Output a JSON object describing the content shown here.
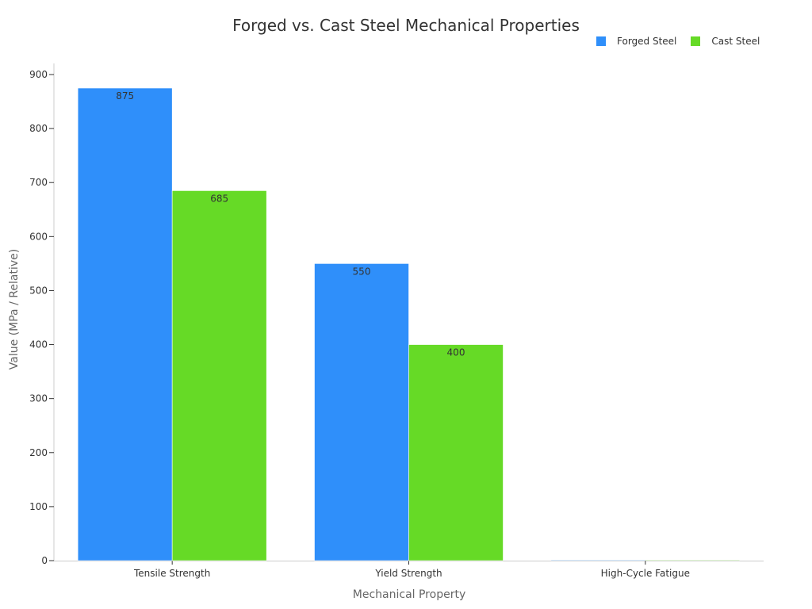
{
  "chart_data": {
    "type": "bar",
    "title": "Forged vs. Cast Steel Mechanical Properties",
    "xlabel": "Mechanical Property",
    "ylabel": "Value (MPa / Relative)",
    "categories": [
      "Tensile Strength",
      "Yield Strength",
      "High-Cycle Fatigue"
    ],
    "series": [
      {
        "name": "Forged Steel",
        "color": "#2f8ffa",
        "values": [
          875,
          550,
          1
        ]
      },
      {
        "name": "Cast Steel",
        "color": "#66da26",
        "values": [
          685,
          400,
          0.7
        ]
      }
    ],
    "ylim": [
      0,
      900
    ],
    "yticks": [
      0,
      100,
      200,
      300,
      400,
      500,
      600,
      700,
      800,
      900
    ],
    "legend_position": "top-right",
    "grid": false
  },
  "legend": {
    "forged_label": "Forged Steel",
    "cast_label": "Cast Steel"
  }
}
